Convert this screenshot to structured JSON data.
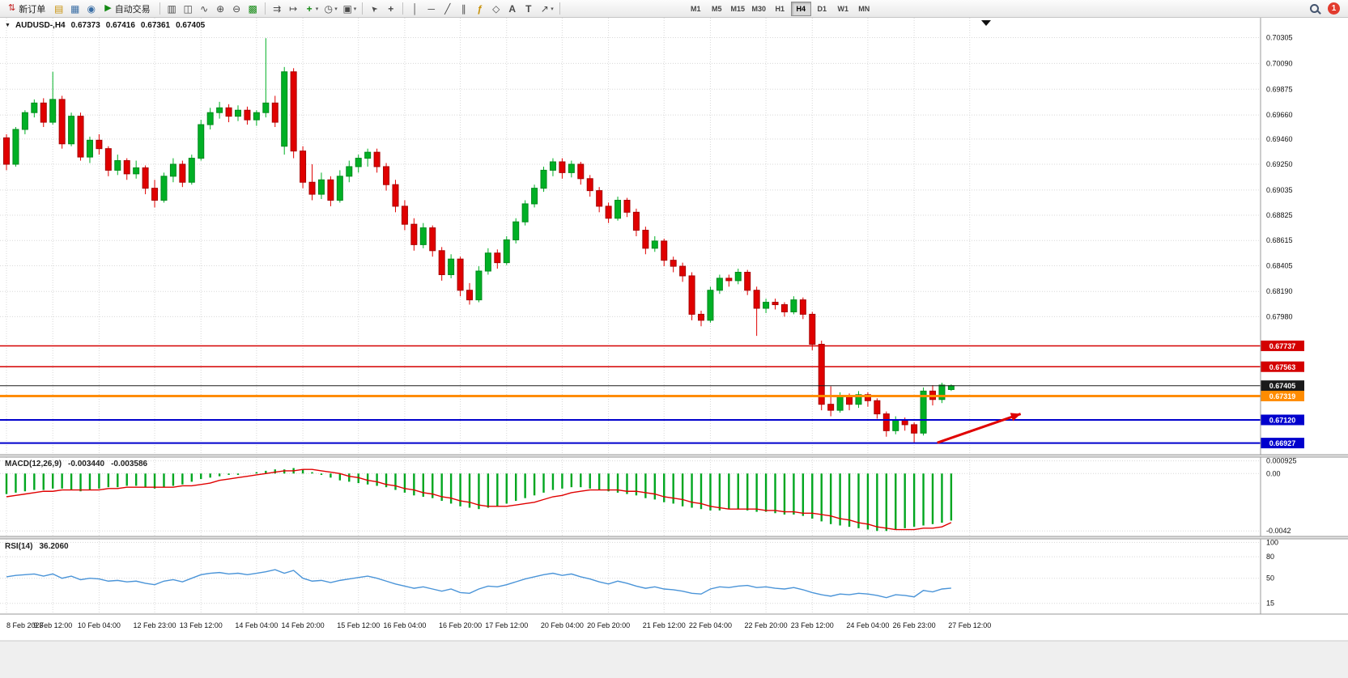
{
  "toolbar": {
    "new_order_label": "新订单",
    "algo_trading_label": "自动交易",
    "timeframes": [
      "M1",
      "M5",
      "M15",
      "M30",
      "H1",
      "H4",
      "D1",
      "W1",
      "MN"
    ],
    "active_timeframe": "H4",
    "notification_count": "1"
  },
  "chart": {
    "symbol_period": "AUDUSD-,H4",
    "open": "0.67373",
    "high": "0.67416",
    "low": "0.67361",
    "close": "0.67405"
  },
  "icons": {
    "new-order-icon": "⇅",
    "market-depth-icon": "▤",
    "data-window-icon": "▦",
    "community-icon": "◉",
    "algo-trading-icon": "▶",
    "bar-chart-icon": "▥",
    "candlestick-chart-icon": "◫",
    "line-chart-icon": "∿",
    "zoom-in-icon": "⊕",
    "zoom-out-icon": "⊖",
    "tile-windows-icon": "▩",
    "auto-scroll-icon": "⇉",
    "chart-shift-icon": "↦",
    "new-chart-icon": "+",
    "period-icon": "◷",
    "snapshot-icon": "▣",
    "cursor-icon": "➤",
    "crosshair-icon": "+",
    "vertical-line-icon": "│",
    "horizontal-line-icon": "─",
    "trendline-icon": "╱",
    "channel-icon": "∥",
    "fibonacci-icon": "ƒ",
    "shapes-icon": "◇",
    "text-icon": "A",
    "label-icon": "T",
    "arrows-icon": "↗",
    "dropdown-caret": "▾",
    "collapse-icon": "▼"
  },
  "colors": {
    "bull": "#00b025",
    "bull_dark": "#008a1c",
    "bear": "#e00000",
    "bear_dark": "#a80000",
    "grid": "#d8d8d8",
    "macd_bar": "#00a61f",
    "macd_signal": "#e00000",
    "rsi_line": "#4a94d8",
    "axis_text": "#111111"
  },
  "chart_data": {
    "type": "candlestick",
    "symbol": "AUDUSD",
    "period": "H4",
    "ylim": [
      0.6683,
      0.7047
    ],
    "price_axis_labels": [
      "0.70305",
      "0.70090",
      "0.69875",
      "0.69660",
      "0.69460",
      "0.69250",
      "0.69035",
      "0.68825",
      "0.68615",
      "0.68405",
      "0.68190",
      "0.67980"
    ],
    "candles": [
      [
        0.6947,
        0.695,
        0.692,
        0.6925
      ],
      [
        0.6925,
        0.6956,
        0.6923,
        0.6954
      ],
      [
        0.6954,
        0.697,
        0.695,
        0.6968
      ],
      [
        0.6968,
        0.6979,
        0.6964,
        0.6976
      ],
      [
        0.6976,
        0.698,
        0.6956,
        0.696
      ],
      [
        0.696,
        0.7002,
        0.6958,
        0.6979
      ],
      [
        0.6979,
        0.6982,
        0.6938,
        0.6942
      ],
      [
        0.6942,
        0.6968,
        0.694,
        0.6965
      ],
      [
        0.6965,
        0.6968,
        0.6928,
        0.6931
      ],
      [
        0.6931,
        0.6948,
        0.6926,
        0.6945
      ],
      [
        0.6945,
        0.695,
        0.6933,
        0.6938
      ],
      [
        0.6938,
        0.694,
        0.6915,
        0.692
      ],
      [
        0.692,
        0.6933,
        0.6916,
        0.6928
      ],
      [
        0.6928,
        0.693,
        0.6912,
        0.6917
      ],
      [
        0.6917,
        0.6928,
        0.6913,
        0.6922
      ],
      [
        0.6922,
        0.6924,
        0.69,
        0.6905
      ],
      [
        0.6905,
        0.6912,
        0.6889,
        0.6895
      ],
      [
        0.6895,
        0.6918,
        0.6893,
        0.6915
      ],
      [
        0.6915,
        0.693,
        0.691,
        0.6925
      ],
      [
        0.6925,
        0.6928,
        0.6906,
        0.691
      ],
      [
        0.691,
        0.6933,
        0.6908,
        0.693
      ],
      [
        0.693,
        0.6962,
        0.6928,
        0.6958
      ],
      [
        0.6958,
        0.6972,
        0.6954,
        0.6968
      ],
      [
        0.6968,
        0.6977,
        0.6963,
        0.6972
      ],
      [
        0.6972,
        0.6975,
        0.696,
        0.6965
      ],
      [
        0.6965,
        0.6974,
        0.6961,
        0.697
      ],
      [
        0.697,
        0.6973,
        0.6958,
        0.6962
      ],
      [
        0.6962,
        0.697,
        0.6957,
        0.6968
      ],
      [
        0.6968,
        0.703,
        0.6964,
        0.6976
      ],
      [
        0.6976,
        0.6982,
        0.6956,
        0.696
      ],
      [
        0.694,
        0.7006,
        0.6933,
        0.7002
      ],
      [
        0.7002,
        0.7005,
        0.693,
        0.6936
      ],
      [
        0.6936,
        0.694,
        0.6905,
        0.691
      ],
      [
        0.691,
        0.6925,
        0.6895,
        0.69
      ],
      [
        0.69,
        0.6918,
        0.6896,
        0.6912
      ],
      [
        0.6912,
        0.6915,
        0.689,
        0.6895
      ],
      [
        0.6895,
        0.692,
        0.6893,
        0.6915
      ],
      [
        0.6915,
        0.6928,
        0.691,
        0.6923
      ],
      [
        0.6923,
        0.6933,
        0.6918,
        0.693
      ],
      [
        0.693,
        0.6938,
        0.6923,
        0.6935
      ],
      [
        0.6935,
        0.6938,
        0.6918,
        0.6923
      ],
      [
        0.6923,
        0.6926,
        0.6903,
        0.6908
      ],
      [
        0.6908,
        0.6912,
        0.6885,
        0.689
      ],
      [
        0.689,
        0.6895,
        0.687,
        0.6875
      ],
      [
        0.6875,
        0.688,
        0.6853,
        0.6858
      ],
      [
        0.6858,
        0.6876,
        0.6855,
        0.6872
      ],
      [
        0.6872,
        0.6874,
        0.6848,
        0.6853
      ],
      [
        0.6853,
        0.6856,
        0.6828,
        0.6833
      ],
      [
        0.6833,
        0.685,
        0.683,
        0.6846
      ],
      [
        0.6846,
        0.6848,
        0.6815,
        0.682
      ],
      [
        0.682,
        0.6826,
        0.6808,
        0.6812
      ],
      [
        0.6812,
        0.684,
        0.681,
        0.6836
      ],
      [
        0.6836,
        0.6855,
        0.6833,
        0.6851
      ],
      [
        0.6851,
        0.6854,
        0.6838,
        0.6843
      ],
      [
        0.6843,
        0.6865,
        0.6841,
        0.6862
      ],
      [
        0.6862,
        0.688,
        0.6859,
        0.6877
      ],
      [
        0.6877,
        0.6895,
        0.6874,
        0.6892
      ],
      [
        0.6892,
        0.6908,
        0.6889,
        0.6905
      ],
      [
        0.6905,
        0.6923,
        0.6902,
        0.692
      ],
      [
        0.692,
        0.693,
        0.6915,
        0.6927
      ],
      [
        0.6927,
        0.693,
        0.6913,
        0.6918
      ],
      [
        0.6918,
        0.6928,
        0.6914,
        0.6925
      ],
      [
        0.6925,
        0.6927,
        0.6908,
        0.6913
      ],
      [
        0.6913,
        0.6916,
        0.6898,
        0.6903
      ],
      [
        0.6903,
        0.6906,
        0.6885,
        0.689
      ],
      [
        0.689,
        0.6893,
        0.6876,
        0.688
      ],
      [
        0.688,
        0.6898,
        0.6878,
        0.6895
      ],
      [
        0.6895,
        0.6897,
        0.6881,
        0.6885
      ],
      [
        0.6885,
        0.6888,
        0.6865,
        0.687
      ],
      [
        0.687,
        0.6873,
        0.685,
        0.6855
      ],
      [
        0.6855,
        0.6865,
        0.6852,
        0.6861
      ],
      [
        0.6861,
        0.6863,
        0.684,
        0.6845
      ],
      [
        0.6845,
        0.6848,
        0.6835,
        0.684
      ],
      [
        0.684,
        0.6843,
        0.6827,
        0.6832
      ],
      [
        0.6832,
        0.6835,
        0.6795,
        0.68
      ],
      [
        0.68,
        0.6803,
        0.679,
        0.6795
      ],
      [
        0.6795,
        0.6823,
        0.6793,
        0.682
      ],
      [
        0.682,
        0.6833,
        0.6817,
        0.683
      ],
      [
        0.683,
        0.6833,
        0.6823,
        0.6828
      ],
      [
        0.6828,
        0.6838,
        0.6825,
        0.6835
      ],
      [
        0.6835,
        0.6837,
        0.6816,
        0.682
      ],
      [
        0.682,
        0.6823,
        0.6782,
        0.6805
      ],
      [
        0.6805,
        0.6813,
        0.6801,
        0.681
      ],
      [
        0.681,
        0.6813,
        0.6804,
        0.6808
      ],
      [
        0.6808,
        0.681,
        0.6798,
        0.6802
      ],
      [
        0.6802,
        0.6815,
        0.68,
        0.6812
      ],
      [
        0.6812,
        0.6814,
        0.6796,
        0.68
      ],
      [
        0.68,
        0.6802,
        0.677,
        0.6775
      ],
      [
        0.6775,
        0.6778,
        0.672,
        0.6725
      ],
      [
        0.6725,
        0.674,
        0.6715,
        0.672
      ],
      [
        0.672,
        0.6735,
        0.6718,
        0.6732
      ],
      [
        0.6732,
        0.6734,
        0.672,
        0.6725
      ],
      [
        0.6725,
        0.6736,
        0.6722,
        0.6733
      ],
      [
        0.6733,
        0.6735,
        0.6723,
        0.6728
      ],
      [
        0.6728,
        0.673,
        0.6713,
        0.6717
      ],
      [
        0.6717,
        0.6719,
        0.6698,
        0.6703
      ],
      [
        0.6703,
        0.6715,
        0.67,
        0.6712
      ],
      [
        0.6712,
        0.6714,
        0.6703,
        0.6708
      ],
      [
        0.6708,
        0.671,
        0.6693,
        0.6701
      ],
      [
        0.6701,
        0.6739,
        0.6699,
        0.6736
      ],
      [
        0.6736,
        0.6741,
        0.6724,
        0.6729
      ],
      [
        0.6729,
        0.6743,
        0.6726,
        0.6741
      ],
      [
        0.67373,
        0.67416,
        0.67361,
        0.67405
      ]
    ],
    "hlines": [
      {
        "name": "resistance-line-1",
        "price": 0.67737,
        "label": "0.67737",
        "color": "#d40000",
        "width": 1.5
      },
      {
        "name": "resistance-line-2",
        "price": 0.67563,
        "label": "0.67563",
        "color": "#d40000",
        "width": 1.5
      },
      {
        "name": "current-price-line",
        "price": 0.67405,
        "label": "0.67405",
        "color": "#1a1a1a",
        "width": 1
      },
      {
        "name": "pivot-line",
        "price": 0.67319,
        "label": "0.67319",
        "color": "#ff8c00",
        "width": 3
      },
      {
        "name": "support-line-1",
        "price": 0.6712,
        "label": "0.67120",
        "color": "#0000cd",
        "width": 2
      },
      {
        "name": "support-line-2",
        "price": 0.66927,
        "label": "0.66927",
        "color": "#0000cd",
        "width": 2
      }
    ],
    "time_ticks": [
      {
        "label": "8 Feb 2023",
        "i": 0
      },
      {
        "label": "9 Feb 12:00",
        "i": 5
      },
      {
        "label": "10 Feb 04:00",
        "i": 10
      },
      {
        "label": "12 Feb 23:00",
        "i": 16
      },
      {
        "label": "13 Feb 12:00",
        "i": 21
      },
      {
        "label": "14 Feb 04:00",
        "i": 27
      },
      {
        "label": "14 Feb 20:00",
        "i": 32
      },
      {
        "label": "15 Feb 12:00",
        "i": 38
      },
      {
        "label": "16 Feb 04:00",
        "i": 43
      },
      {
        "label": "16 Feb 20:00",
        "i": 49
      },
      {
        "label": "17 Feb 12:00",
        "i": 54
      },
      {
        "label": "20 Feb 04:00",
        "i": 60
      },
      {
        "label": "20 Feb 20:00",
        "i": 65
      },
      {
        "label": "21 Feb 12:00",
        "i": 71
      },
      {
        "label": "22 Feb 04:00",
        "i": 76
      },
      {
        "label": "22 Feb 20:00",
        "i": 82
      },
      {
        "label": "23 Feb 12:00",
        "i": 87
      },
      {
        "label": "24 Feb 04:00",
        "i": 93
      },
      {
        "label": "26 Feb 23:00",
        "i": 98
      },
      {
        "label": "27 Feb 12:00",
        "i": 104
      }
    ],
    "arrow": {
      "name": "trend-arrow-annotation",
      "from": {
        "i": 100.5,
        "price": 0.6693
      },
      "to": {
        "i": 109.5,
        "price": 0.6717
      },
      "color": "#e00000",
      "width": 3
    },
    "macd": {
      "label": "MACD(12,26,9)",
      "main_value": "-0.003440",
      "signal_value": "-0.003586",
      "ylim": [
        -0.0046,
        0.0012
      ],
      "scale_labels": [
        {
          "text": "0.000925",
          "value": 0.000925
        },
        {
          "text": "0.00",
          "value": 0
        },
        {
          "text": "-0.0042",
          "value": -0.0042
        }
      ],
      "histogram_1e4": [
        -15,
        -14,
        -13,
        -12,
        -12,
        -11,
        -11,
        -12,
        -13,
        -12,
        -11,
        -10,
        -10,
        -9,
        -9,
        -10,
        -11,
        -10,
        -9,
        -8,
        -6,
        -4,
        -3,
        -2,
        -1,
        -1,
        0,
        1,
        2,
        3,
        3,
        4,
        3,
        1,
        -1,
        -3,
        -5,
        -6,
        -7,
        -8,
        -9,
        -10,
        -12,
        -14,
        -16,
        -17,
        -18,
        -20,
        -22,
        -24,
        -25,
        -26,
        -25,
        -24,
        -22,
        -20,
        -18,
        -16,
        -14,
        -12,
        -11,
        -10,
        -10,
        -11,
        -12,
        -13,
        -14,
        -15,
        -16,
        -18,
        -19,
        -21,
        -22,
        -24,
        -25,
        -26,
        -27,
        -27,
        -26,
        -26,
        -27,
        -28,
        -28,
        -29,
        -30,
        -30,
        -31,
        -33,
        -35,
        -37,
        -38,
        -39,
        -40,
        -41,
        -42,
        -42,
        -41,
        -40,
        -39,
        -38,
        -37,
        -36,
        -34.4
      ],
      "signal_1e4": [
        -17,
        -16,
        -15,
        -14,
        -13,
        -13,
        -12,
        -12,
        -12,
        -12,
        -12,
        -11,
        -11,
        -10,
        -10,
        -10,
        -10,
        -10,
        -10,
        -9,
        -9,
        -8,
        -7,
        -5,
        -4,
        -3,
        -2,
        -1,
        0,
        1,
        2,
        2,
        3,
        3,
        2,
        1,
        0,
        -2,
        -3,
        -5,
        -6,
        -8,
        -9,
        -11,
        -12,
        -14,
        -15,
        -17,
        -18,
        -20,
        -21,
        -23,
        -24,
        -24,
        -24,
        -23,
        -22,
        -21,
        -19,
        -17,
        -16,
        -14,
        -13,
        -12,
        -12,
        -12,
        -12,
        -13,
        -13,
        -14,
        -15,
        -17,
        -18,
        -19,
        -21,
        -22,
        -24,
        -25,
        -26,
        -26,
        -26,
        -26,
        -27,
        -27,
        -28,
        -28,
        -29,
        -29,
        -30,
        -31,
        -33,
        -34,
        -36,
        -37,
        -39,
        -40,
        -41,
        -41,
        -41,
        -40,
        -40,
        -39,
        -35.86
      ]
    },
    "rsi": {
      "label": "RSI(14)",
      "value": "36.2060",
      "ylim": [
        0,
        105
      ],
      "levels": [
        {
          "text": "100",
          "value": 100
        },
        {
          "text": "80",
          "value": 80
        },
        {
          "text": "50",
          "value": 50
        },
        {
          "text": "15",
          "value": 15
        }
      ],
      "values": [
        52,
        54,
        55,
        56,
        53,
        56,
        50,
        53,
        48,
        50,
        49,
        46,
        47,
        45,
        46,
        43,
        41,
        46,
        48,
        45,
        50,
        55,
        57,
        58,
        56,
        57,
        55,
        57,
        59,
        62,
        57,
        61,
        50,
        46,
        47,
        44,
        47,
        49,
        51,
        53,
        50,
        46,
        42,
        39,
        36,
        38,
        35,
        32,
        35,
        30,
        29,
        35,
        39,
        38,
        41,
        45,
        49,
        52,
        55,
        57,
        54,
        56,
        52,
        49,
        45,
        42,
        46,
        43,
        39,
        36,
        38,
        35,
        34,
        32,
        29,
        28,
        35,
        38,
        37,
        39,
        40,
        37,
        38,
        36,
        35,
        37,
        34,
        30,
        27,
        25,
        28,
        27,
        29,
        28,
        26,
        23,
        27,
        26,
        24,
        33,
        31,
        35,
        36.2
      ]
    }
  }
}
